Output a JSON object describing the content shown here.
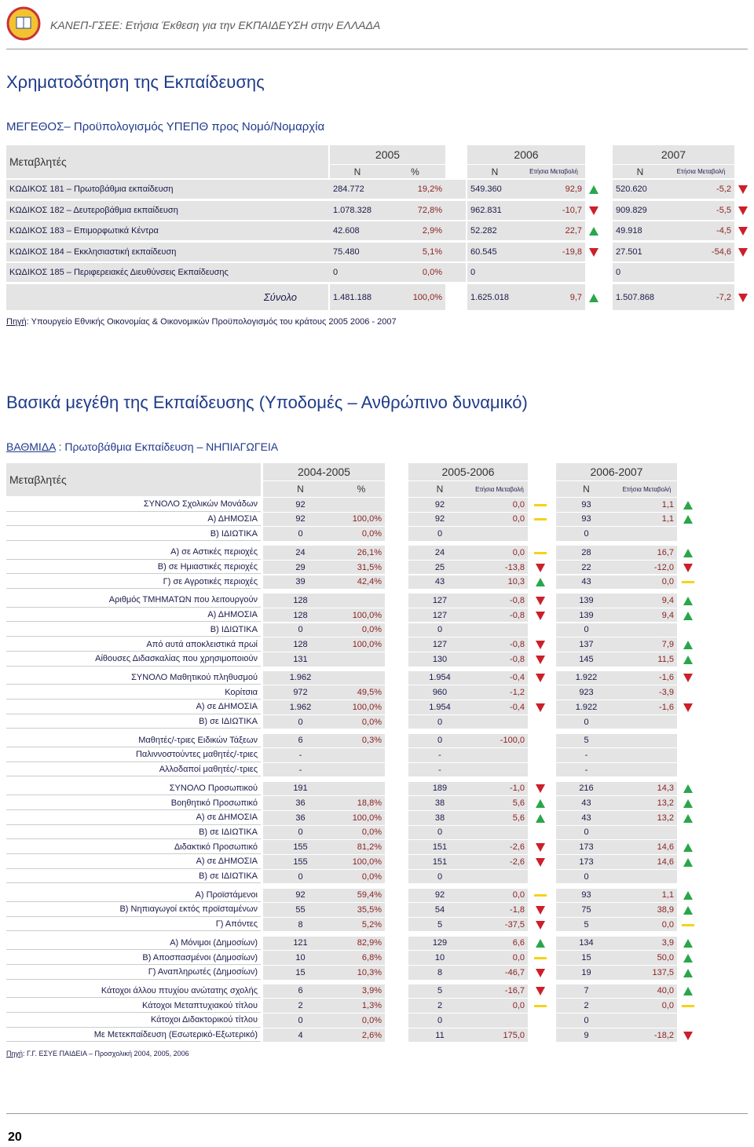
{
  "header": {
    "title": "ΚΑΝΕΠ-ΓΣΕΕ: Ετήσια Έκθεση για την ΕΚΠΑΙΔΕΥΣΗ στην ΕΛΛΑΔΑ"
  },
  "section1": {
    "title": "Χρηματοδότηση της Εκπαίδευσης",
    "subtitle": "ΜΕΓΕΘΟΣ– Προϋπολογισμός ΥΠΕΠΘ προς Νομό/Νομαρχία"
  },
  "table1": {
    "header": {
      "variables": "Μεταβλητές",
      "years": [
        "2005",
        "2006",
        "2007"
      ],
      "sub": [
        "N",
        "%",
        "N",
        "Ετήσια Μεταβολή",
        "N",
        "Ετήσια Μεταβολή"
      ]
    },
    "rows": [
      {
        "label": "ΚΩΔΙΚΟΣ 181 – Πρωτοβάθμια εκπαίδευση",
        "n1": "284.772",
        "p1": "19,2%",
        "n2": "549.360",
        "c2": "92,9",
        "t2": "up",
        "n3": "520.620",
        "c3": "-5,2",
        "t3": "down"
      },
      {
        "label": "ΚΩΔΙΚΟΣ 182 – Δευτεροβάθμια εκπαίδευση",
        "n1": "1.078.328",
        "p1": "72,8%",
        "n2": "962.831",
        "c2": "-10,7",
        "t2": "down",
        "n3": "909.829",
        "c3": "-5,5",
        "t3": "down"
      },
      {
        "label": "ΚΩΔΙΚΟΣ 183 – Επιμορφωτικά Κέντρα",
        "n1": "42.608",
        "p1": "2,9%",
        "n2": "52.282",
        "c2": "22,7",
        "t2": "up",
        "n3": "49.918",
        "c3": "-4,5",
        "t3": "down"
      },
      {
        "label": "ΚΩΔΙΚΟΣ 184 – Εκκλησιαστική εκπαίδευση",
        "n1": "75.480",
        "p1": "5,1%",
        "n2": "60.545",
        "c2": "-19,8",
        "t2": "down",
        "n3": "27.501",
        "c3": "-54,6",
        "t3": "down"
      },
      {
        "label": "ΚΩΔΙΚΟΣ 185 – Περιφερειακές Διευθύνσεις Εκπαίδευσης",
        "n1": "0",
        "p1": "0,0%",
        "n2": "0",
        "n3": "0"
      }
    ],
    "total": {
      "label": "Σύνολο",
      "n1": "1.481.188",
      "p1": "100,0%",
      "n2": "1.625.018",
      "c2": "9,7",
      "t2": "up",
      "n3": "1.507.868",
      "c3": "-7,2",
      "t3": "down"
    }
  },
  "source1": {
    "label": "Πηγή",
    "text": ": Υπουργείο Εθνικής Οικονομίας & Οικονομικών Προϋπολογισμός του κράτους 2005 2006 - 2007"
  },
  "section2": {
    "title": "Βασικά μεγέθη της Εκπαίδευσης (Υποδομές – Ανθρώπινο δυναμικό)",
    "level_label": "ΒΑΘΜΙΔΑ",
    "level_text": " : Πρωτοβάθμια Εκπαίδευση – ΝΗΠΙΑΓΩΓΕΙΑ"
  },
  "table2": {
    "header": {
      "variables": "Μεταβλητές",
      "years": [
        "2004-2005",
        "2005-2006",
        "2006-2007"
      ],
      "sub": [
        "N",
        "%",
        "N",
        "Ετήσια Μεταβολή",
        "N",
        "Ετήσια Μεταβολή"
      ]
    },
    "groups": [
      [
        {
          "label": "ΣΥΝΟΛΟ Σχολικών Μονάδων",
          "n1": "92",
          "n2": "92",
          "c2": "0,0",
          "t2": "flat",
          "n3": "93",
          "c3": "1,1",
          "t3": "up"
        },
        {
          "label": "Α) ΔΗΜΟΣΙΑ",
          "n1": "92",
          "p1": "100,0%",
          "n2": "92",
          "c2": "0,0",
          "t2": "flat",
          "n3": "93",
          "c3": "1,1",
          "t3": "up"
        },
        {
          "label": "Β) ΙΔΙΩΤΙΚΑ",
          "n1": "0",
          "p1": "0,0%",
          "n2": "0",
          "n3": "0"
        }
      ],
      [
        {
          "label": "Α) σε Αστικές περιοχές",
          "n1": "24",
          "p1": "26,1%",
          "n2": "24",
          "c2": "0,0",
          "t2": "flat",
          "n3": "28",
          "c3": "16,7",
          "t3": "up"
        },
        {
          "label": "Β) σε Ημιαστικές περιοχές",
          "n1": "29",
          "p1": "31,5%",
          "n2": "25",
          "c2": "-13,8",
          "t2": "down",
          "n3": "22",
          "c3": "-12,0",
          "t3": "down"
        },
        {
          "label": "Γ) σε Αγροτικές περιοχές",
          "n1": "39",
          "p1": "42,4%",
          "n2": "43",
          "c2": "10,3",
          "t2": "up",
          "n3": "43",
          "c3": "0,0",
          "t3": "flat"
        }
      ],
      [
        {
          "label": "Αριθμός ΤΜΗΜΑΤΩΝ που λειτουργούν",
          "n1": "128",
          "n2": "127",
          "c2": "-0,8",
          "t2": "down",
          "n3": "139",
          "c3": "9,4",
          "t3": "up"
        },
        {
          "label": "Α) ΔΗΜΟΣΙΑ",
          "n1": "128",
          "p1": "100,0%",
          "n2": "127",
          "c2": "-0,8",
          "t2": "down",
          "n3": "139",
          "c3": "9,4",
          "t3": "up"
        },
        {
          "label": "Β) ΙΔΙΩΤΙΚΑ",
          "n1": "0",
          "p1": "0,0%",
          "n2": "0",
          "n3": "0"
        },
        {
          "label": "Από αυτά αποκλειστικά πρωί",
          "n1": "128",
          "p1": "100,0%",
          "n2": "127",
          "c2": "-0,8",
          "t2": "down",
          "n3": "137",
          "c3": "7,9",
          "t3": "up"
        },
        {
          "label": "Αίθουσες Διδασκαλίας που χρησιμοποιούν",
          "n1": "131",
          "n2": "130",
          "c2": "-0,8",
          "t2": "down",
          "n3": "145",
          "c3": "11,5",
          "t3": "up"
        }
      ],
      [
        {
          "label": "ΣΥΝΟΛΟ Μαθητικού πληθυσμού",
          "n1": "1.962",
          "n2": "1.954",
          "c2": "-0,4",
          "t2": "down",
          "n3": "1.922",
          "c3": "-1,6",
          "t3": "down"
        },
        {
          "label": "Κορίτσια",
          "n1": "972",
          "p1": "49,5%",
          "n2": "960",
          "c2": "-1,2",
          "n3": "923",
          "c3": "-3,9"
        },
        {
          "label": "Α) σε ΔΗΜΟΣΙΑ",
          "n1": "1.962",
          "p1": "100,0%",
          "n2": "1.954",
          "c2": "-0,4",
          "t2": "down",
          "n3": "1.922",
          "c3": "-1,6",
          "t3": "down"
        },
        {
          "label": "Β) σε ΙΔΙΩΤΙΚΑ",
          "n1": "0",
          "p1": "0,0%",
          "n2": "0",
          "n3": "0"
        }
      ],
      [
        {
          "label": "Μαθητές/-τριες Ειδικών Τάξεων",
          "n1": "6",
          "p1": "0,3%",
          "n2": "0",
          "c2": "-100,0",
          "n3": "5"
        },
        {
          "label": "Παλιννοστούντες μαθητές/-τριες",
          "n1": "-",
          "n2": "-",
          "n3": "-"
        },
        {
          "label": "Αλλοδαποί μαθητές/-τριες",
          "n1": "-",
          "n2": "-",
          "n3": "-"
        }
      ],
      [
        {
          "label": "ΣΥΝΟΛΟ Προσωπικού",
          "n1": "191",
          "n2": "189",
          "c2": "-1,0",
          "t2": "down",
          "n3": "216",
          "c3": "14,3",
          "t3": "up"
        },
        {
          "label": "Βοηθητικό Προσωπικό",
          "n1": "36",
          "p1": "18,8%",
          "n2": "38",
          "c2": "5,6",
          "t2": "up",
          "n3": "43",
          "c3": "13,2",
          "t3": "up"
        },
        {
          "label": "Α) σε ΔΗΜΟΣΙΑ",
          "n1": "36",
          "p1": "100,0%",
          "n2": "38",
          "c2": "5,6",
          "t2": "up",
          "n3": "43",
          "c3": "13,2",
          "t3": "up"
        },
        {
          "label": "Β) σε ΙΔΙΩΤΙΚΑ",
          "n1": "0",
          "p1": "0,0%",
          "n2": "0",
          "n3": "0"
        },
        {
          "label": "Διδακτικό Προσωπικό",
          "n1": "155",
          "p1": "81,2%",
          "n2": "151",
          "c2": "-2,6",
          "t2": "down",
          "n3": "173",
          "c3": "14,6",
          "t3": "up"
        },
        {
          "label": "Α) σε ΔΗΜΟΣΙΑ",
          "n1": "155",
          "p1": "100,0%",
          "n2": "151",
          "c2": "-2,6",
          "t2": "down",
          "n3": "173",
          "c3": "14,6",
          "t3": "up"
        },
        {
          "label": "Β) σε ΙΔΙΩΤΙΚΑ",
          "n1": "0",
          "p1": "0,0%",
          "n2": "0",
          "n3": "0"
        }
      ],
      [
        {
          "label": "Α) Προϊστάμενοι",
          "n1": "92",
          "p1": "59,4%",
          "n2": "92",
          "c2": "0,0",
          "t2": "flat",
          "n3": "93",
          "c3": "1,1",
          "t3": "up"
        },
        {
          "label": "Β) Νηπιαγωγοί εκτός προϊσταμένων",
          "n1": "55",
          "p1": "35,5%",
          "n2": "54",
          "c2": "-1,8",
          "t2": "down",
          "n3": "75",
          "c3": "38,9",
          "t3": "up"
        },
        {
          "label": "Γ) Απόντες",
          "n1": "8",
          "p1": "5,2%",
          "n2": "5",
          "c2": "-37,5",
          "t2": "down",
          "n3": "5",
          "c3": "0,0",
          "t3": "flat"
        }
      ],
      [
        {
          "label": "Α) Μόνιμοι (Δημοσίων)",
          "n1": "121",
          "p1": "82,9%",
          "n2": "129",
          "c2": "6,6",
          "t2": "up",
          "n3": "134",
          "c3": "3,9",
          "t3": "up"
        },
        {
          "label": "Β) Αποσπασμένοι (Δημοσίων)",
          "n1": "10",
          "p1": "6,8%",
          "n2": "10",
          "c2": "0,0",
          "t2": "flat",
          "n3": "15",
          "c3": "50,0",
          "t3": "up"
        },
        {
          "label": "Γ) Αναπληρωτές (Δημοσίων)",
          "n1": "15",
          "p1": "10,3%",
          "n2": "8",
          "c2": "-46,7",
          "t2": "down",
          "n3": "19",
          "c3": "137,5",
          "t3": "up"
        }
      ],
      [
        {
          "label": "Κάτοχοι άλλου πτυχίου ανώτατης σχολής",
          "n1": "6",
          "p1": "3,9%",
          "n2": "5",
          "c2": "-16,7",
          "t2": "down",
          "n3": "7",
          "c3": "40,0",
          "t3": "up"
        },
        {
          "label": "Κάτοχοι Μεταπτυχιακού τίτλου",
          "n1": "2",
          "p1": "1,3%",
          "n2": "2",
          "c2": "0,0",
          "t2": "flat",
          "n3": "2",
          "c3": "0,0",
          "t3": "flat"
        },
        {
          "label": "Κάτοχοι Διδακτορικού τίτλου",
          "n1": "0",
          "p1": "0,0%",
          "n2": "0",
          "n3": "0"
        },
        {
          "label": "Με Μετεκπαίδευση (Εσωτερικό-Εξωτερικό)",
          "n1": "4",
          "p1": "2,6%",
          "n2": "11",
          "c2": "175,0",
          "n3": "9",
          "c3": "-18,2",
          "t3": "down"
        }
      ]
    ]
  },
  "source2": {
    "label": "Πηγή",
    "text": ": Γ.Γ. ΕΣΥΕ ΠΑΙΔΕΙΑ – Προσχολική 2004, 2005, 2006"
  },
  "footer": {
    "page": "20"
  }
}
